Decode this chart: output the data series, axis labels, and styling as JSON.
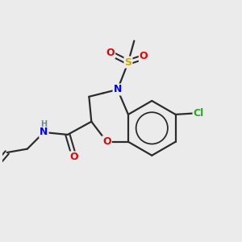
{
  "background_color": "#ebebeb",
  "bond_color": "#2c2c2c",
  "atom_colors": {
    "N": "#0000ee",
    "O": "#ee0000",
    "S": "#ccaa00",
    "Cl": "#22aa22",
    "H": "#778888",
    "C": "#2c2c2c"
  },
  "figsize": [
    3.0,
    3.0
  ],
  "dpi": 100
}
